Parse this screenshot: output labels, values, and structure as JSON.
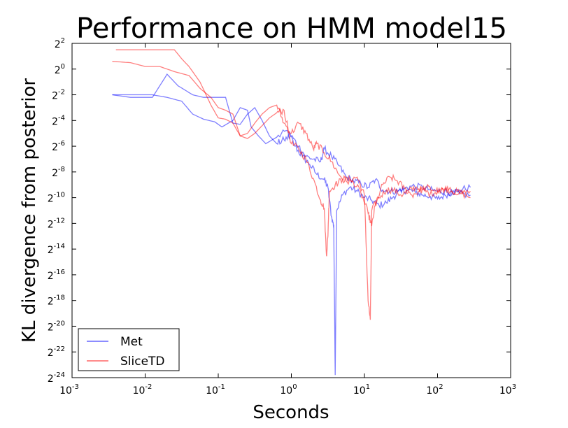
{
  "chart_data": {
    "type": "line",
    "title": "Performance on HMM model15",
    "xlabel": "Seconds",
    "ylabel": "KL divergence from posterior",
    "x_scale": "log10",
    "y_scale": "log2",
    "xlim": [
      0.001,
      1000
    ],
    "ylim_log2": [
      -24,
      2
    ],
    "x_ticks": [
      {
        "base": "10",
        "exp": "-3",
        "value": 0.001
      },
      {
        "base": "10",
        "exp": "-2",
        "value": 0.01
      },
      {
        "base": "10",
        "exp": "-1",
        "value": 0.1
      },
      {
        "base": "10",
        "exp": "0",
        "value": 1
      },
      {
        "base": "10",
        "exp": "1",
        "value": 10
      },
      {
        "base": "10",
        "exp": "2",
        "value": 100
      },
      {
        "base": "10",
        "exp": "3",
        "value": 1000
      }
    ],
    "y_ticks": [
      {
        "base": "2",
        "exp": "2"
      },
      {
        "base": "2",
        "exp": "0"
      },
      {
        "base": "2",
        "exp": "-2"
      },
      {
        "base": "2",
        "exp": "-4"
      },
      {
        "base": "2",
        "exp": "-6"
      },
      {
        "base": "2",
        "exp": "-8"
      },
      {
        "base": "2",
        "exp": "-10"
      },
      {
        "base": "2",
        "exp": "-12"
      },
      {
        "base": "2",
        "exp": "-14"
      },
      {
        "base": "2",
        "exp": "-16"
      },
      {
        "base": "2",
        "exp": "-18"
      },
      {
        "base": "2",
        "exp": "-20"
      },
      {
        "base": "2",
        "exp": "-22"
      },
      {
        "base": "2",
        "exp": "-24"
      }
    ],
    "legend_position": "lower-left",
    "legend": [
      {
        "label": "Met",
        "color": "#0000ff"
      },
      {
        "label": "SliceTD",
        "color": "#ff0000"
      }
    ],
    "series_note_x_units": "log10 seconds",
    "series": [
      {
        "name": "Met",
        "color": "#0000ff",
        "run": 1,
        "points": [
          [
            -2.45,
            -2.0
          ],
          [
            -2.0,
            -2.0
          ],
          [
            -1.9,
            -2.0
          ],
          [
            -1.7,
            -2.2
          ],
          [
            -1.5,
            -2.5
          ],
          [
            -1.35,
            -3.5
          ],
          [
            -1.2,
            -3.9
          ],
          [
            -1.05,
            -4.1
          ],
          [
            -0.95,
            -4.5
          ],
          [
            -0.8,
            -4.0
          ],
          [
            -0.7,
            -3.0
          ],
          [
            -0.6,
            -3.2
          ],
          [
            -0.55,
            -4.5
          ],
          [
            -0.45,
            -5.2
          ],
          [
            -0.35,
            -5.8
          ],
          [
            -0.2,
            -5.3
          ],
          [
            -0.05,
            -4.8
          ],
          [
            0.05,
            -6.0
          ],
          [
            0.15,
            -6.8
          ],
          [
            0.25,
            -7.4
          ],
          [
            0.35,
            -8.2
          ],
          [
            0.45,
            -8.6
          ],
          [
            0.5,
            -9.2
          ],
          [
            0.55,
            -11.5
          ],
          [
            0.58,
            -12.2
          ],
          [
            0.6,
            -23.8
          ],
          [
            0.62,
            -11.0
          ],
          [
            0.7,
            -9.8
          ],
          [
            0.8,
            -9.2
          ],
          [
            0.9,
            -9.5
          ],
          [
            1.0,
            -10.0
          ],
          [
            1.1,
            -10.2
          ],
          [
            1.2,
            -10.6
          ],
          [
            1.3,
            -10.4
          ],
          [
            1.4,
            -9.9
          ],
          [
            1.5,
            -9.5
          ],
          [
            1.6,
            -9.4
          ],
          [
            1.7,
            -9.6
          ],
          [
            1.8,
            -9.8
          ],
          [
            1.9,
            -9.9
          ],
          [
            2.0,
            -10.1
          ],
          [
            2.1,
            -9.8
          ],
          [
            2.2,
            -9.6
          ],
          [
            2.3,
            -9.4
          ],
          [
            2.45,
            -9.2
          ]
        ]
      },
      {
        "name": "Met",
        "color": "#0000ff",
        "run": 2,
        "points": [
          [
            -2.45,
            -2.0
          ],
          [
            -2.2,
            -2.2
          ],
          [
            -1.9,
            -2.2
          ],
          [
            -1.7,
            -0.4
          ],
          [
            -1.55,
            -1.3
          ],
          [
            -1.35,
            -2.0
          ],
          [
            -1.2,
            -2.2
          ],
          [
            -1.05,
            -2.2
          ],
          [
            -0.9,
            -2.2
          ],
          [
            -0.8,
            -4.2
          ],
          [
            -0.7,
            -4.3
          ],
          [
            -0.6,
            -3.5
          ],
          [
            -0.5,
            -3.0
          ],
          [
            -0.4,
            -4.0
          ],
          [
            -0.3,
            -5.2
          ],
          [
            -0.2,
            -5.8
          ],
          [
            -0.1,
            -5.5
          ],
          [
            0.0,
            -5.2
          ],
          [
            0.1,
            -6.0
          ],
          [
            0.2,
            -6.8
          ],
          [
            0.3,
            -7.0
          ],
          [
            0.4,
            -7.2
          ],
          [
            0.45,
            -6.2
          ],
          [
            0.55,
            -6.8
          ],
          [
            0.65,
            -7.5
          ],
          [
            0.75,
            -8.4
          ],
          [
            0.85,
            -8.7
          ],
          [
            0.95,
            -8.9
          ],
          [
            1.05,
            -9.2
          ],
          [
            1.15,
            -8.6
          ],
          [
            1.25,
            -9.4
          ],
          [
            1.35,
            -9.5
          ],
          [
            1.45,
            -9.5
          ],
          [
            1.55,
            -9.3
          ],
          [
            1.65,
            -9.1
          ],
          [
            1.8,
            -9.2
          ],
          [
            1.9,
            -9.4
          ],
          [
            2.0,
            -9.5
          ],
          [
            2.1,
            -9.5
          ],
          [
            2.2,
            -9.6
          ],
          [
            2.3,
            -9.7
          ],
          [
            2.45,
            -9.8
          ]
        ]
      },
      {
        "name": "SliceTD",
        "color": "#ff0000",
        "run": 1,
        "points": [
          [
            -2.4,
            1.5
          ],
          [
            -2.0,
            1.5
          ],
          [
            -1.6,
            1.5
          ],
          [
            -1.5,
            0.8
          ],
          [
            -1.4,
            0.2
          ],
          [
            -1.25,
            -1.0
          ],
          [
            -1.1,
            -2.8
          ],
          [
            -1.0,
            -3.8
          ],
          [
            -0.9,
            -3.9
          ],
          [
            -0.8,
            -4.2
          ],
          [
            -0.7,
            -5.2
          ],
          [
            -0.6,
            -5.4
          ],
          [
            -0.5,
            -5.0
          ],
          [
            -0.4,
            -4.4
          ],
          [
            -0.3,
            -3.8
          ],
          [
            -0.2,
            -3.4
          ],
          [
            -0.1,
            -3.2
          ],
          [
            0.0,
            -5.8
          ],
          [
            0.1,
            -6.2
          ],
          [
            0.2,
            -7.0
          ],
          [
            0.3,
            -8.5
          ],
          [
            0.4,
            -10.2
          ],
          [
            0.45,
            -10.8
          ],
          [
            0.48,
            -14.5
          ],
          [
            0.5,
            -13.0
          ],
          [
            0.52,
            -9.5
          ],
          [
            0.6,
            -9.0
          ],
          [
            0.7,
            -8.6
          ],
          [
            0.8,
            -8.6
          ],
          [
            0.9,
            -8.4
          ],
          [
            1.0,
            -9.8
          ],
          [
            1.05,
            -18.0
          ],
          [
            1.08,
            -19.5
          ],
          [
            1.1,
            -11.0
          ],
          [
            1.2,
            -10.0
          ],
          [
            1.3,
            -9.4
          ],
          [
            1.4,
            -9.4
          ],
          [
            1.5,
            -9.8
          ],
          [
            1.6,
            -9.5
          ],
          [
            1.7,
            -9.2
          ],
          [
            1.8,
            -9.4
          ],
          [
            1.9,
            -9.7
          ],
          [
            2.0,
            -9.5
          ],
          [
            2.1,
            -9.3
          ],
          [
            2.2,
            -9.5
          ],
          [
            2.3,
            -9.6
          ],
          [
            2.45,
            -10.0
          ]
        ]
      },
      {
        "name": "SliceTD",
        "color": "#ff0000",
        "run": 2,
        "points": [
          [
            -2.45,
            0.6
          ],
          [
            -2.2,
            0.5
          ],
          [
            -2.0,
            0.2
          ],
          [
            -1.8,
            0.2
          ],
          [
            -1.6,
            -0.2
          ],
          [
            -1.4,
            -0.5
          ],
          [
            -1.25,
            -1.5
          ],
          [
            -1.1,
            -2.2
          ],
          [
            -1.0,
            -3.0
          ],
          [
            -0.9,
            -3.2
          ],
          [
            -0.8,
            -3.5
          ],
          [
            -0.7,
            -5.2
          ],
          [
            -0.6,
            -5.0
          ],
          [
            -0.5,
            -4.2
          ],
          [
            -0.4,
            -3.5
          ],
          [
            -0.3,
            -3.0
          ],
          [
            -0.2,
            -2.8
          ],
          [
            -0.1,
            -4.2
          ],
          [
            0.0,
            -5.0
          ],
          [
            0.1,
            -4.2
          ],
          [
            0.2,
            -5.0
          ],
          [
            0.3,
            -6.2
          ],
          [
            0.35,
            -5.8
          ],
          [
            0.45,
            -6.5
          ],
          [
            0.55,
            -7.2
          ],
          [
            0.65,
            -8.2
          ],
          [
            0.75,
            -8.7
          ],
          [
            0.85,
            -8.8
          ],
          [
            0.95,
            -9.6
          ],
          [
            1.05,
            -11.2
          ],
          [
            1.1,
            -12.2
          ],
          [
            1.15,
            -10.5
          ],
          [
            1.25,
            -9.0
          ],
          [
            1.35,
            -8.4
          ],
          [
            1.45,
            -8.7
          ],
          [
            1.55,
            -9.3
          ],
          [
            1.65,
            -9.8
          ],
          [
            1.75,
            -9.5
          ],
          [
            1.85,
            -9.2
          ],
          [
            1.95,
            -9.4
          ],
          [
            2.05,
            -9.5
          ],
          [
            2.15,
            -9.4
          ],
          [
            2.3,
            -9.6
          ],
          [
            2.45,
            -9.5
          ]
        ]
      }
    ]
  }
}
